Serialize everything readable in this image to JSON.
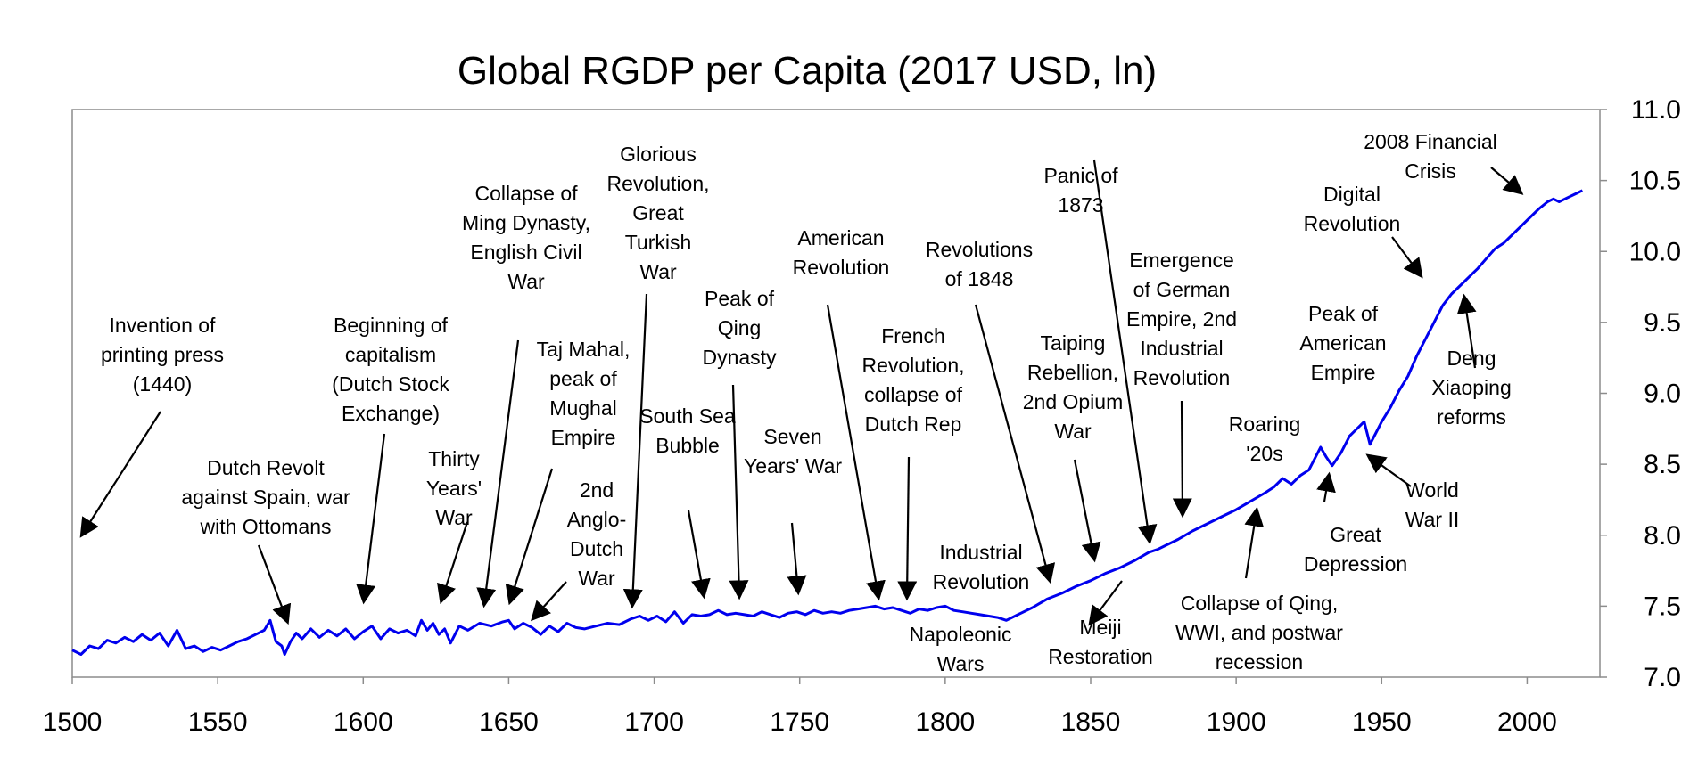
{
  "chart_data": {
    "type": "line",
    "title": "Global RGDP per Capita (2017 USD, ln)",
    "xlabel": "",
    "ylabel": "",
    "xlim": [
      1500,
      2025
    ],
    "ylim": [
      7.0,
      11.0
    ],
    "x_ticks": [
      "1500",
      "1550",
      "1600",
      "1650",
      "1700",
      "1750",
      "1800",
      "1850",
      "1900",
      "1950",
      "2000"
    ],
    "y_ticks": [
      "7.0",
      "7.5",
      "8.0",
      "8.5",
      "9.0",
      "9.5",
      "10.0",
      "10.5",
      "11.0"
    ],
    "y_axis_side": "right",
    "grid": false,
    "legend": "none",
    "series_color": "#0000ee",
    "series": [
      {
        "x": [
          1500,
          1503,
          1506,
          1509,
          1512,
          1515,
          1518,
          1521,
          1524,
          1527,
          1530,
          1533,
          1536,
          1539,
          1542,
          1545,
          1548,
          1551,
          1554,
          1557,
          1560,
          1563,
          1566,
          1568,
          1570,
          1572,
          1573,
          1575,
          1577,
          1579,
          1582,
          1585,
          1588,
          1591,
          1594,
          1597,
          1600,
          1603,
          1606,
          1609,
          1612,
          1615,
          1618,
          1620,
          1622,
          1624,
          1626,
          1628,
          1630,
          1633,
          1636,
          1640,
          1644,
          1648,
          1650,
          1652,
          1655,
          1658,
          1661,
          1664,
          1667,
          1670,
          1673,
          1676,
          1680,
          1684,
          1688,
          1692,
          1695,
          1698,
          1701,
          1704,
          1707,
          1710,
          1713,
          1716,
          1719,
          1722,
          1725,
          1728,
          1731,
          1734,
          1737,
          1740,
          1743,
          1746,
          1749,
          1752,
          1755,
          1758,
          1761,
          1764,
          1767,
          1770,
          1773,
          1776,
          1779,
          1782,
          1785,
          1788,
          1791,
          1794,
          1797,
          1800,
          1803,
          1806,
          1809,
          1812,
          1815,
          1818,
          1821,
          1825,
          1830,
          1835,
          1840,
          1845,
          1850,
          1855,
          1860,
          1865,
          1870,
          1873,
          1876,
          1880,
          1885,
          1890,
          1895,
          1900,
          1905,
          1910,
          1913,
          1916,
          1919,
          1922,
          1925,
          1929,
          1931,
          1933,
          1936,
          1939,
          1942,
          1944,
          1946,
          1948,
          1950,
          1953,
          1956,
          1959,
          1962,
          1965,
          1968,
          1971,
          1974,
          1977,
          1980,
          1983,
          1986,
          1989,
          1992,
          1995,
          1998,
          2001,
          2004,
          2007,
          2009,
          2011,
          2014,
          2017,
          2019
        ],
        "values": [
          7.19,
          7.16,
          7.22,
          7.2,
          7.26,
          7.24,
          7.28,
          7.25,
          7.3,
          7.26,
          7.31,
          7.22,
          7.33,
          7.2,
          7.22,
          7.18,
          7.21,
          7.19,
          7.22,
          7.25,
          7.27,
          7.3,
          7.33,
          7.4,
          7.25,
          7.22,
          7.16,
          7.25,
          7.31,
          7.27,
          7.34,
          7.28,
          7.33,
          7.29,
          7.34,
          7.27,
          7.32,
          7.36,
          7.27,
          7.34,
          7.31,
          7.33,
          7.29,
          7.4,
          7.33,
          7.38,
          7.3,
          7.34,
          7.24,
          7.36,
          7.33,
          7.38,
          7.36,
          7.39,
          7.4,
          7.34,
          7.38,
          7.35,
          7.3,
          7.36,
          7.32,
          7.38,
          7.35,
          7.34,
          7.36,
          7.38,
          7.37,
          7.41,
          7.43,
          7.4,
          7.43,
          7.39,
          7.46,
          7.38,
          7.44,
          7.43,
          7.44,
          7.47,
          7.44,
          7.45,
          7.44,
          7.43,
          7.46,
          7.44,
          7.42,
          7.45,
          7.46,
          7.44,
          7.47,
          7.45,
          7.46,
          7.45,
          7.47,
          7.48,
          7.49,
          7.5,
          7.48,
          7.49,
          7.47,
          7.45,
          7.48,
          7.47,
          7.49,
          7.5,
          7.47,
          7.46,
          7.45,
          7.44,
          7.43,
          7.42,
          7.4,
          7.44,
          7.49,
          7.55,
          7.59,
          7.64,
          7.68,
          7.73,
          7.77,
          7.82,
          7.88,
          7.9,
          7.93,
          7.97,
          8.03,
          8.08,
          8.13,
          8.18,
          8.24,
          8.3,
          8.34,
          8.4,
          8.36,
          8.42,
          8.46,
          8.62,
          8.55,
          8.49,
          8.58,
          8.7,
          8.76,
          8.8,
          8.64,
          8.72,
          8.8,
          8.9,
          9.02,
          9.12,
          9.26,
          9.38,
          9.5,
          9.62,
          9.7,
          9.76,
          9.82,
          9.88,
          9.95,
          10.02,
          10.06,
          10.12,
          10.18,
          10.24,
          10.3,
          10.35,
          10.37,
          10.35,
          10.38,
          10.41,
          10.43
        ]
      }
    ],
    "annotations": [
      {
        "lines": [
          "Invention of",
          "printing press",
          "(1440)"
        ]
      },
      {
        "lines": [
          "Dutch Revolt",
          "against Spain, war",
          "with Ottomans"
        ]
      },
      {
        "lines": [
          "Beginning of",
          "capitalism",
          "(Dutch Stock",
          "Exchange)"
        ]
      },
      {
        "lines": [
          "Thirty",
          "Years'",
          "War"
        ]
      },
      {
        "lines": [
          "Collapse of",
          "Ming Dynasty,",
          "English Civil",
          "War"
        ]
      },
      {
        "lines": [
          "Taj Mahal,",
          "peak of",
          "Mughal",
          "Empire"
        ]
      },
      {
        "lines": [
          "2nd",
          "Anglo-",
          "Dutch",
          "War"
        ]
      },
      {
        "lines": [
          "Glorious",
          "Revolution,",
          "Great",
          "Turkish",
          "War"
        ]
      },
      {
        "lines": [
          "South Sea",
          "Bubble"
        ]
      },
      {
        "lines": [
          "Peak of",
          "Qing",
          "Dynasty"
        ]
      },
      {
        "lines": [
          "Seven",
          "Years' War"
        ]
      },
      {
        "lines": [
          "American",
          "Revolution"
        ]
      },
      {
        "lines": [
          "French",
          "Revolution,",
          "collapse of",
          "Dutch Rep"
        ]
      },
      {
        "lines": [
          "Revolutions",
          "of 1848"
        ]
      },
      {
        "lines": [
          "Napoleonic",
          "Wars"
        ]
      },
      {
        "lines": [
          "Industrial",
          "Revolution"
        ]
      },
      {
        "lines": [
          "Taiping",
          "Rebellion,",
          "2nd Opium",
          "War"
        ]
      },
      {
        "lines": [
          "Panic of",
          "1873"
        ]
      },
      {
        "lines": [
          "Meiji",
          "Restoration"
        ]
      },
      {
        "lines": [
          "Emergence",
          "of German",
          "Empire, 2nd",
          "Industrial",
          "Revolution"
        ]
      },
      {
        "lines": [
          "Collapse of Qing,",
          "WWI, and postwar",
          "recession"
        ]
      },
      {
        "lines": [
          "Roaring",
          "'20s"
        ]
      },
      {
        "lines": [
          "Great",
          "Depression"
        ]
      },
      {
        "lines": [
          "Peak of",
          "American",
          "Empire"
        ]
      },
      {
        "lines": [
          "World",
          "War II"
        ]
      },
      {
        "lines": [
          "Digital",
          "Revolution"
        ]
      },
      {
        "lines": [
          "Deng",
          "Xiaoping",
          "reforms"
        ]
      },
      {
        "lines": [
          "2008 Financial",
          "Crisis"
        ]
      }
    ]
  }
}
